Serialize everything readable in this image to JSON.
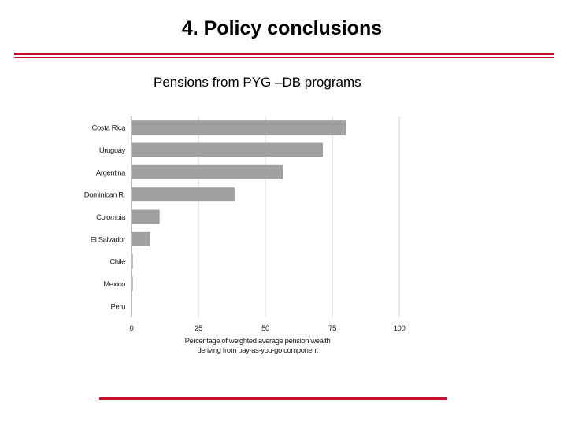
{
  "slide": {
    "title": "4. Policy conclusions",
    "subtitle": "Pensions from PYG –DB programs",
    "accent_color": "#c8102e"
  },
  "chart_data": {
    "type": "bar",
    "orientation": "horizontal",
    "categories": [
      "Costa Rica",
      "Uruguay",
      "Argentina",
      "Dominican R.",
      "Colombia",
      "El Salvador",
      "Chile",
      "Mexico",
      "Peru"
    ],
    "values": [
      80,
      71.5,
      56.5,
      38.5,
      10.5,
      7,
      0.5,
      0.5,
      0
    ],
    "xlabel": "Percentage of weighted average pension wealth deriving from pay-as-you-go component",
    "xlabel_lines": [
      "Percentage of weighted average pension wealth",
      "deriving from pay-as-you-go component"
    ],
    "xlim": [
      0,
      100
    ],
    "xticks": [
      0,
      25,
      50,
      75,
      100
    ],
    "grid": true,
    "bar_color": "#a0a0a0",
    "grid_color": "#d4d4d4"
  }
}
